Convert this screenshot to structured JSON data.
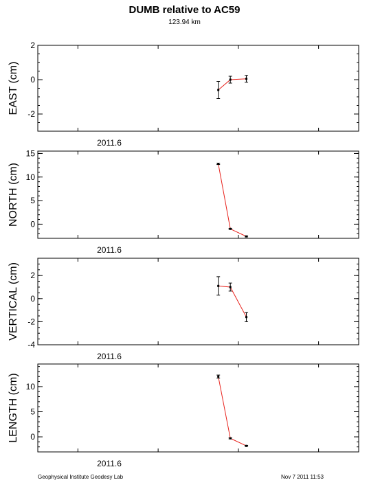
{
  "title": "DUMB relative to AC59",
  "subtitle": "123.94 km",
  "footer": {
    "left": "Geophysical Institute Geodesy Lab",
    "right": "Nov 7 2011 11:53"
  },
  "colors": {
    "line": "#e8201a",
    "points": "#000000",
    "frame": "#000000"
  },
  "chart_data": [
    {
      "type": "line",
      "name": "east",
      "ylabel": "EAST (cm)",
      "xtick_label": "2011.6",
      "ylim": [
        -3,
        2
      ],
      "yticks": [
        2,
        0,
        -2
      ],
      "points": [
        {
          "x": 2011.85,
          "y": -0.6,
          "err": 0.5
        },
        {
          "x": 2011.88,
          "y": 0.0,
          "err": 0.2
        },
        {
          "x": 2011.92,
          "y": 0.05,
          "err": 0.2
        }
      ]
    },
    {
      "type": "line",
      "name": "north",
      "ylabel": "NORTH (cm)",
      "xtick_label": "2011.6",
      "ylim": [
        -3,
        15.5
      ],
      "yticks": [
        15,
        10,
        5,
        0
      ],
      "points": [
        {
          "x": 2011.85,
          "y": 12.8,
          "err": 0.15
        },
        {
          "x": 2011.88,
          "y": -1.0,
          "err": 0.1
        },
        {
          "x": 2011.92,
          "y": -2.6,
          "err": 0.1
        }
      ]
    },
    {
      "type": "line",
      "name": "vertical",
      "ylabel": "VERTICAL (cm)",
      "xtick_label": "2011.6",
      "ylim": [
        -4,
        3.5
      ],
      "yticks": [
        2,
        0,
        -2,
        -4
      ],
      "points": [
        {
          "x": 2011.85,
          "y": 1.1,
          "err": 0.8
        },
        {
          "x": 2011.88,
          "y": 1.0,
          "err": 0.35
        },
        {
          "x": 2011.92,
          "y": -1.6,
          "err": 0.4
        }
      ]
    },
    {
      "type": "line",
      "name": "length",
      "ylabel": "LENGTH (cm)",
      "xtick_label": "2011.6",
      "ylim": [
        -3,
        14.5
      ],
      "yticks": [
        10,
        5,
        0
      ],
      "points": [
        {
          "x": 2011.85,
          "y": 12.0,
          "err": 0.3
        },
        {
          "x": 2011.88,
          "y": -0.3,
          "err": 0.1
        },
        {
          "x": 2011.92,
          "y": -1.8,
          "err": 0.1
        }
      ]
    }
  ]
}
